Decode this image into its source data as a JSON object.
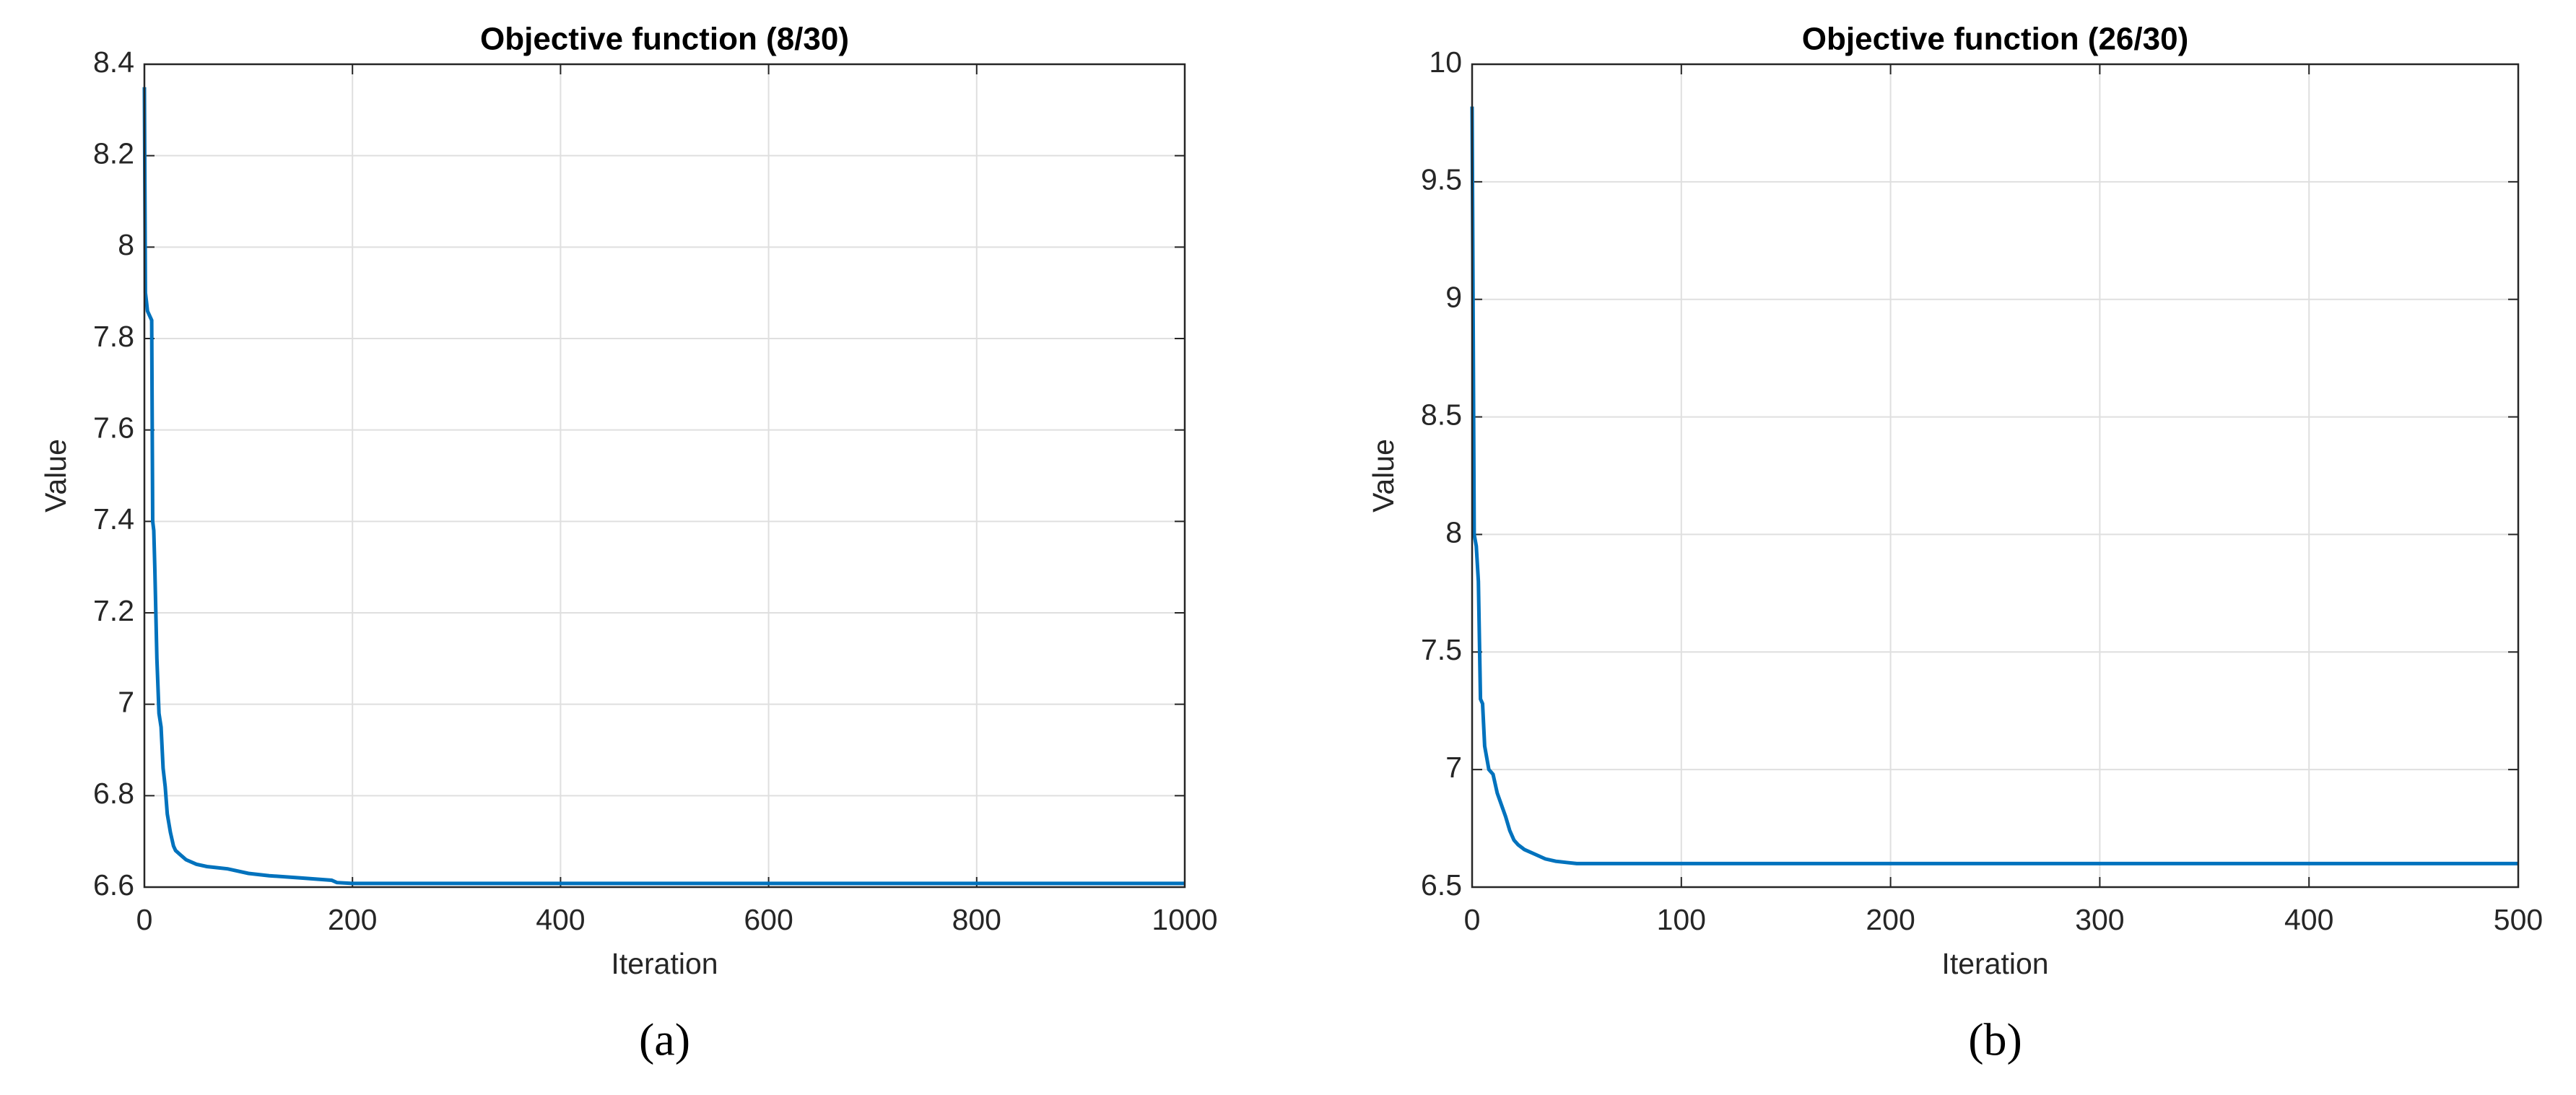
{
  "chart_data": [
    {
      "type": "line",
      "title": "Objective function (8/30)",
      "xlabel": "Iteration",
      "ylabel": "Value",
      "caption": "(a)",
      "x": [
        0,
        1,
        2,
        3,
        5,
        7,
        8,
        9,
        10,
        12,
        14,
        16,
        18,
        20,
        22,
        25,
        28,
        30,
        35,
        40,
        50,
        60,
        80,
        100,
        120,
        150,
        180,
        185,
        200,
        1000
      ],
      "values": [
        8.35,
        7.9,
        7.88,
        7.86,
        7.85,
        7.84,
        7.4,
        7.38,
        7.3,
        7.1,
        6.98,
        6.95,
        6.86,
        6.82,
        6.76,
        6.72,
        6.69,
        6.68,
        6.67,
        6.66,
        6.65,
        6.645,
        6.64,
        6.63,
        6.625,
        6.62,
        6.615,
        6.61,
        6.608,
        6.608
      ],
      "color": "#0072bd",
      "xlim": [
        0,
        1000
      ],
      "ylim": [
        6.6,
        8.4
      ],
      "xticks": [
        0,
        200,
        400,
        600,
        800,
        1000
      ],
      "yticks": [
        6.6,
        6.8,
        7,
        7.2,
        7.4,
        7.6,
        7.8,
        8,
        8.2,
        8.4
      ],
      "grid": true
    },
    {
      "type": "line",
      "title": "Objective function (26/30)",
      "xlabel": "Iteration",
      "ylabel": "Value",
      "caption": "(b)",
      "x": [
        0,
        1,
        2,
        3,
        4,
        5,
        6,
        7,
        8,
        10,
        12,
        14,
        16,
        18,
        20,
        22,
        25,
        30,
        35,
        40,
        45,
        50,
        500
      ],
      "values": [
        9.82,
        8.0,
        7.95,
        7.8,
        7.3,
        7.28,
        7.1,
        7.05,
        7.0,
        6.98,
        6.9,
        6.85,
        6.8,
        6.74,
        6.7,
        6.68,
        6.66,
        6.64,
        6.62,
        6.61,
        6.605,
        6.6,
        6.6
      ],
      "color": "#0072bd",
      "xlim": [
        0,
        500
      ],
      "ylim": [
        6.5,
        10
      ],
      "xticks": [
        0,
        100,
        200,
        300,
        400,
        500
      ],
      "yticks": [
        6.5,
        7,
        7.5,
        8,
        8.5,
        9,
        9.5,
        10
      ],
      "grid": true
    }
  ]
}
